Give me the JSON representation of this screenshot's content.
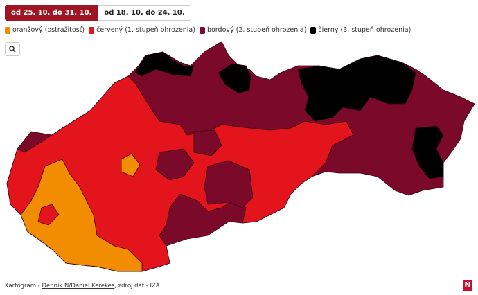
{
  "tabs": [
    "od 25. 10. do 31. 10.",
    "od 18. 10. do 24. 10."
  ],
  "legend": [
    {
      "label": "oranžový (ostražitosť)",
      "color": "#f28c00"
    },
    {
      "label": "červený (1. stupeň ohrozenia)",
      "color": "#e3141b"
    },
    {
      "label": "bordový (2. stupeň ohrozenia)",
      "color": "#7b0a2a"
    },
    {
      "label": "čierny (3. stupeň ohrozenia)",
      "color": "#000000"
    }
  ],
  "footer": {
    "prefix": "Kartogram - ",
    "link": "Denník N/Daniel Kerekes",
    "suffix": ", zdroj dát - IZA"
  },
  "logo": "N"
}
